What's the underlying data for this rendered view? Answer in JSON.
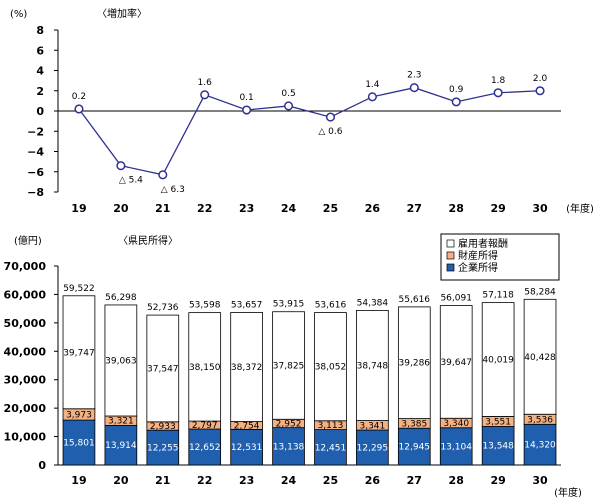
{
  "chart_data": [
    {
      "type": "line",
      "title": "〈増加率〉",
      "yunit": "(%)",
      "xunit": "(年度)",
      "categories": [
        "19",
        "20",
        "21",
        "22",
        "23",
        "24",
        "25",
        "26",
        "27",
        "28",
        "29",
        "30"
      ],
      "ylim": [
        -8,
        8
      ],
      "yticks": [
        "8",
        "6",
        "4",
        "2",
        "0",
        "−2",
        "−4",
        "−6",
        "−8"
      ],
      "series": [
        {
          "values": [
            0.2,
            -5.4,
            -6.3,
            1.6,
            0.1,
            0.5,
            -0.6,
            1.4,
            2.3,
            0.9,
            1.8,
            2.0
          ]
        }
      ],
      "labels": [
        "0.2",
        "△ 5.4",
        "△ 6.3",
        "1.6",
        "0.1",
        "0.5",
        "△ 0.6",
        "1.4",
        "2.3",
        "0.9",
        "1.8",
        "2.0"
      ],
      "color": "#2e3192"
    },
    {
      "type": "bar",
      "stacked": true,
      "title": "〈県民所得〉",
      "yunit": "(億円)",
      "xunit": "(年度)",
      "categories": [
        "19",
        "20",
        "21",
        "22",
        "23",
        "24",
        "25",
        "26",
        "27",
        "28",
        "29",
        "30"
      ],
      "ylim": [
        0,
        70000
      ],
      "yticks": [
        "0",
        "10,000",
        "20,000",
        "30,000",
        "40,000",
        "50,000",
        "60,000",
        "70,000"
      ],
      "totals": [
        59522,
        56298,
        52736,
        53598,
        53657,
        53915,
        53616,
        54384,
        55616,
        56091,
        57118,
        58284
      ],
      "totals_labels": [
        "59,522",
        "56,298",
        "52,736",
        "53,598",
        "53,657",
        "53,915",
        "53,616",
        "54,384",
        "55,616",
        "56,091",
        "57,118",
        "58,284"
      ],
      "series": [
        {
          "name": "企業所得",
          "values": [
            15801,
            13914,
            12255,
            12652,
            12531,
            13138,
            12451,
            12295,
            12945,
            13104,
            13548,
            14320
          ],
          "labels": [
            "15,801",
            "13,914",
            "12,255",
            "12,652",
            "12,531",
            "13,138",
            "12,451",
            "12,295",
            "12,945",
            "13,104",
            "13,548",
            "14,320"
          ],
          "color": "#1f5fad"
        },
        {
          "name": "財産所得",
          "values": [
            3973,
            3321,
            2933,
            2797,
            2754,
            2952,
            3113,
            3341,
            3385,
            3340,
            3551,
            3536
          ],
          "labels": [
            "3,973",
            "3,321",
            "2,933",
            "2,797",
            "2,754",
            "2,952",
            "3,113",
            "3,341",
            "3,385",
            "3,340",
            "3,551",
            "3,536"
          ],
          "color": "#f4b183"
        },
        {
          "name": "雇用者報酬",
          "values": [
            39747,
            39063,
            37547,
            38150,
            38372,
            37825,
            38052,
            38748,
            39286,
            39647,
            40019,
            40428
          ],
          "labels": [
            "39,747",
            "39,063",
            "37,547",
            "38,150",
            "38,372",
            "37,825",
            "38,052",
            "38,748",
            "39,286",
            "39,647",
            "40,019",
            "40,428"
          ],
          "color": "#ffffff"
        }
      ],
      "legend_order": [
        "雇用者報酬",
        "財産所得",
        "企業所得"
      ],
      "legend_position": "top-right"
    }
  ]
}
